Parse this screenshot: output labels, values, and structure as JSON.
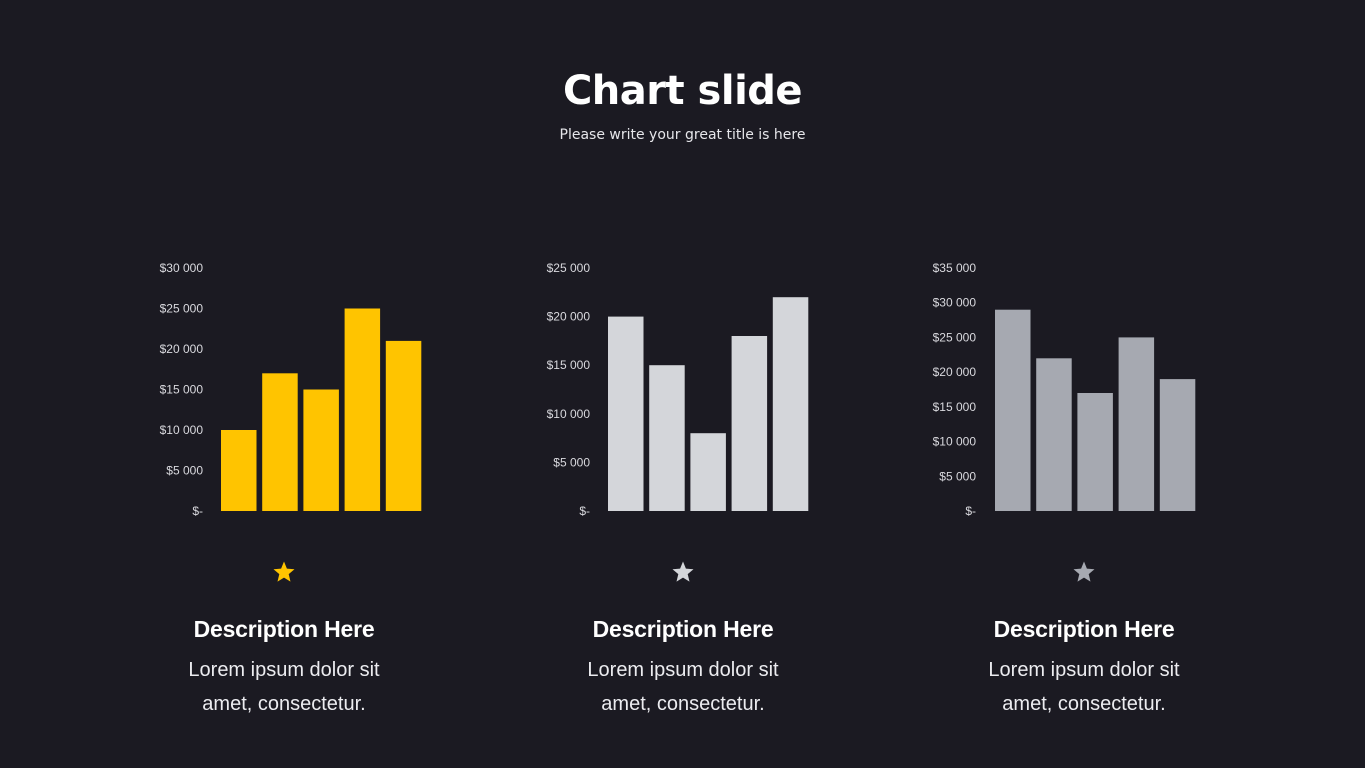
{
  "slide": {
    "title": "Chart slide",
    "subtitle": "Please write your great title is here"
  },
  "cards": [
    {
      "icon": "star-icon",
      "color": "#ffc400",
      "title": "Description Here",
      "text_line1": "Lorem ipsum dolor sit",
      "text_line2": "amet, consectetur."
    },
    {
      "icon": "star-icon",
      "color": "#d4d6da",
      "title": "Description Here",
      "text_line1": "Lorem ipsum dolor sit",
      "text_line2": "amet, consectetur."
    },
    {
      "icon": "star-icon",
      "color": "#a6a9b1",
      "title": "Description Here",
      "text_line1": "Lorem ipsum dolor sit",
      "text_line2": "amet, consectetur."
    }
  ],
  "chart_data": [
    {
      "type": "bar",
      "color": "#ffc400",
      "ylim": [
        0,
        30000
      ],
      "yticks": [
        0,
        5000,
        10000,
        15000,
        20000,
        25000,
        30000
      ],
      "ytick_labels": [
        "$-",
        "$5 000",
        "$10 000",
        "$15 000",
        "$20 000",
        "$25 000",
        "$30 000"
      ],
      "values": [
        10000,
        17000,
        15000,
        25000,
        21000
      ]
    },
    {
      "type": "bar",
      "color": "#d4d6da",
      "ylim": [
        0,
        25000
      ],
      "yticks": [
        0,
        5000,
        10000,
        15000,
        20000,
        25000
      ],
      "ytick_labels": [
        "$-",
        "$5 000",
        "$10 000",
        "$15 000",
        "$20 000",
        "$25 000"
      ],
      "values": [
        20000,
        15000,
        8000,
        18000,
        22000
      ]
    },
    {
      "type": "bar",
      "color": "#a6a9b1",
      "ylim": [
        0,
        35000
      ],
      "yticks": [
        0,
        5000,
        10000,
        15000,
        20000,
        25000,
        30000,
        35000
      ],
      "ytick_labels": [
        "$-",
        "$5 000",
        "$10 000",
        "$15 000",
        "$20 000",
        "$25 000",
        "$30 000",
        "$35 000"
      ],
      "values": [
        29000,
        22000,
        17000,
        25000,
        19000
      ]
    }
  ]
}
